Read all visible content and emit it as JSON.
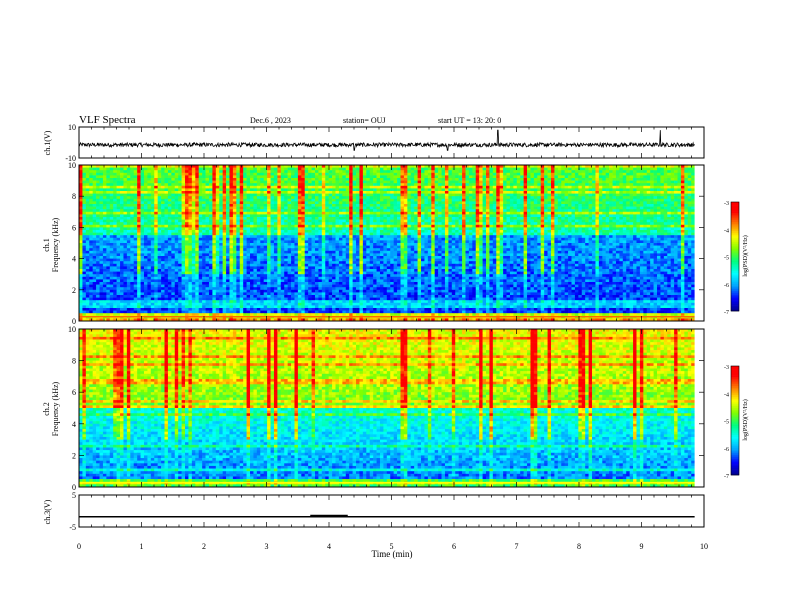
{
  "header": {
    "title": "VLF Spectra",
    "date": "Dec.6  , 2023",
    "station": "station= OUJ",
    "start": "start  UT  =   13: 20: 0"
  },
  "colors": {
    "spectrogram_colormap": [
      "#00008b",
      "#0000ff",
      "#00a0ff",
      "#00ffff",
      "#00ff80",
      "#80ff00",
      "#ffff00",
      "#ff8000",
      "#ff0000",
      "#ffffff"
    ],
    "waveform": "#000000"
  },
  "chart_data": [
    {
      "type": "line",
      "name": "ch1-waveform",
      "ylabel": "ch.1(V)",
      "ylim": [
        -10,
        10
      ],
      "yticks": [
        "10",
        "-10"
      ],
      "xlim": [
        0,
        10
      ],
      "baseline": -1.5,
      "description_values": {
        "typical_min": -3,
        "typical_max": 0,
        "spikes_at_min": [
          4.4,
          5.9,
          6.7,
          9.3
        ]
      }
    },
    {
      "type": "heatmap",
      "name": "ch1-spectrogram",
      "ylabel": "ch.1\nFrequency (kHz)",
      "ylabel_line1": "ch.1",
      "ylabel_line2": "Frequency (kHz)",
      "ylim": [
        0,
        10
      ],
      "yticks": [
        "0",
        "2",
        "4",
        "6",
        "8",
        "10"
      ],
      "xlim": [
        0,
        10
      ],
      "colorbar": {
        "label": "log(PSD)(V²/Hz)",
        "range": [
          -7,
          -3
        ],
        "ticks": [
          "-3",
          "-4",
          "-5",
          "-6",
          "-7"
        ]
      }
    },
    {
      "type": "heatmap",
      "name": "ch2-spectrogram",
      "ylabel_line1": "ch.2",
      "ylabel_line2": "Frequency (kHz)",
      "ylim": [
        0,
        10
      ],
      "yticks": [
        "0",
        "2",
        "4",
        "6",
        "8",
        "10"
      ],
      "xlim": [
        0,
        10
      ],
      "colorbar": {
        "label": "log(PSD)(V²/Hz)",
        "range": [
          -7,
          -3
        ],
        "ticks": [
          "-3",
          "-4",
          "-5",
          "-6",
          "-7"
        ]
      }
    },
    {
      "type": "line",
      "name": "ch3-level",
      "ylabel": "ch.3(V)",
      "ylim": [
        -5,
        5
      ],
      "yticks": [
        "5",
        "-5"
      ],
      "xlim": [
        0,
        10
      ],
      "level": -1.8,
      "bump": {
        "x0": 3.7,
        "x1": 4.3,
        "value": -1.4
      }
    }
  ],
  "xaxis": {
    "label": "Time  (min)",
    "ticks": [
      "0",
      "1",
      "2",
      "3",
      "4",
      "5",
      "6",
      "7",
      "8",
      "9",
      "10"
    ]
  }
}
